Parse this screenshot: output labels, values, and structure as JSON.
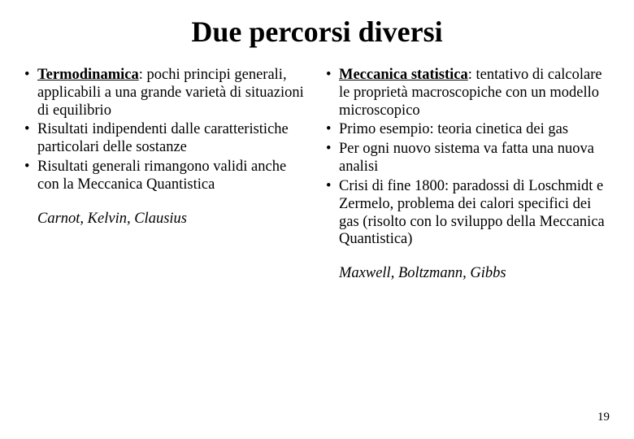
{
  "title": "Due percorsi diversi",
  "left": {
    "items": [
      {
        "term": "Termodinamica",
        "rest": ": pochi principi generali, applicabili a una grande varietà di situazioni di equilibrio"
      },
      {
        "plain": "Risultati indipendenti dalle caratteristiche particolari delle sostanze"
      },
      {
        "plain": "Risultati generali rimangono validi anche con la Meccanica Quantistica"
      }
    ],
    "names": "Carnot, Kelvin, Clausius"
  },
  "right": {
    "items": [
      {
        "term": "Meccanica statistica",
        "rest": ": tentativo di calcolare le proprietà macroscopiche con un modello microscopico"
      },
      {
        "plain": "Primo esempio: teoria cinetica dei gas"
      },
      {
        "plain": "Per ogni nuovo sistema va fatta una nuova analisi"
      },
      {
        "plain": "Crisi di fine 1800: paradossi di Loschmidt e Zermelo, problema dei calori specifici dei gas (risolto con lo sviluppo della Meccanica Quantistica)"
      }
    ],
    "names": "Maxwell, Boltzmann, Gibbs"
  },
  "page_number": "19"
}
